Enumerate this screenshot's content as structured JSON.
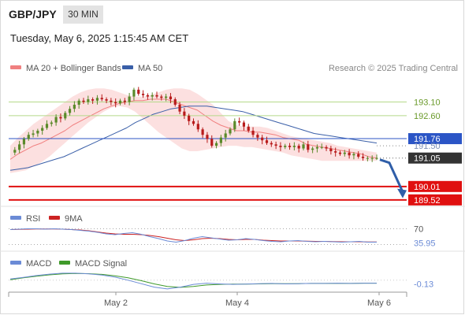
{
  "header": {
    "symbol": "GBP/JPY",
    "interval": "30 MIN",
    "datetime": "Tuesday, May 6, 2025 1:15:45 AM CET"
  },
  "credit": "Research © 2025 Trading Central",
  "colors": {
    "ma20": "#f08080",
    "bollinger_fill": "#fbd5d5",
    "ma50": "#3a5fa8",
    "resistance_line": "#b5d98a",
    "resistance_text": "#6a9a2a",
    "pivot_line": "#2b55c6",
    "pivot_box": "#2b55c6",
    "price_box": "#333333",
    "support": "#e01010",
    "bull_candle": "#5a8a2a",
    "bear_candle": "#b81c1c",
    "forecast_arrow": "#2f5ea8",
    "rsi_line": "#6b8bd6",
    "rsi_9ma": "#cc2222",
    "macd_line": "#6b8bd6",
    "macd_signal": "#3f9a2a"
  },
  "chart_data": [
    {
      "type": "candlestick",
      "legend": [
        "MA 20 + Bollinger Bands",
        "MA 50"
      ],
      "x_ticks": [
        "May 2",
        "May 4",
        "May 6"
      ],
      "levels": [
        {
          "value": 193.1,
          "label": "193.10",
          "kind": "resistance"
        },
        {
          "value": 192.6,
          "label": "192.60",
          "kind": "resistance"
        },
        {
          "value": 191.76,
          "label": "191.76",
          "kind": "pivot"
        },
        {
          "value": 191.5,
          "label": "191.50",
          "kind": "dotted"
        },
        {
          "value": 191.05,
          "label": "191.05",
          "kind": "last"
        },
        {
          "value": 190.01,
          "label": "190.01",
          "kind": "support"
        },
        {
          "value": 189.52,
          "label": "189.52",
          "kind": "support"
        }
      ],
      "ylim": [
        189.4,
        193.95
      ],
      "closes": [
        191.25,
        191.35,
        191.55,
        191.75,
        191.9,
        191.95,
        192.05,
        192.15,
        192.3,
        192.35,
        192.55,
        192.5,
        192.7,
        192.85,
        193.0,
        193.15,
        193.1,
        193.2,
        193.15,
        193.25,
        193.2,
        193.15,
        193.1,
        193.05,
        193.15,
        193.1,
        193.3,
        193.55,
        193.4,
        193.35,
        193.3,
        193.35,
        193.3,
        193.25,
        193.3,
        193.2,
        193.0,
        192.75,
        192.6,
        192.4,
        192.3,
        192.1,
        191.9,
        191.75,
        191.5,
        191.6,
        191.8,
        191.95,
        192.1,
        192.4,
        192.35,
        192.2,
        192.05,
        191.9,
        191.8,
        191.7,
        191.6,
        191.55,
        191.5,
        191.45,
        191.5,
        191.45,
        191.5,
        191.4,
        191.55,
        191.35,
        191.4,
        191.45,
        191.45,
        191.4,
        191.3,
        191.25,
        191.2,
        191.25,
        191.15,
        191.2,
        191.1,
        191.05,
        191.05,
        191.05,
        191.05
      ],
      "ma20": [
        191.0,
        191.2,
        191.35,
        191.5,
        191.6,
        191.75,
        191.9,
        192.05,
        192.25,
        192.4,
        192.55,
        192.7,
        192.85,
        192.95,
        193.05,
        193.1,
        193.15,
        193.15,
        193.2,
        193.2,
        193.2,
        193.1,
        193.0,
        192.9,
        192.8,
        192.6,
        192.4,
        192.25,
        192.15,
        192.05,
        192.05,
        192.0,
        192.0,
        191.95,
        191.9,
        191.8,
        191.75,
        191.7,
        191.55,
        191.5,
        191.45,
        191.4,
        191.35,
        191.3,
        191.25,
        191.2,
        191.1,
        191.05
      ],
      "bb_upper": [
        191.5,
        191.8,
        192.05,
        192.3,
        192.5,
        192.7,
        192.9,
        193.1,
        193.3,
        193.45,
        193.55,
        193.6,
        193.6,
        193.55,
        193.45,
        193.35,
        193.3,
        193.3,
        193.35,
        193.45,
        193.55,
        193.6,
        193.6,
        193.55,
        193.4,
        193.2,
        193.0,
        192.7,
        192.4,
        192.25,
        192.2,
        192.2,
        192.2,
        192.15,
        192.05,
        191.95,
        191.85,
        191.8,
        191.75,
        191.7,
        191.65,
        191.6,
        191.5,
        191.45,
        191.4,
        191.35,
        191.3,
        191.25
      ],
      "bb_lower": [
        190.5,
        190.55,
        190.6,
        190.75,
        190.9,
        191.1,
        191.35,
        191.6,
        191.85,
        192.1,
        192.35,
        192.55,
        192.75,
        192.9,
        192.95,
        192.9,
        192.75,
        192.5,
        192.25,
        192.0,
        191.8,
        191.6,
        191.4,
        191.3,
        191.3,
        191.35,
        191.4,
        191.45,
        191.5,
        191.5,
        191.45,
        191.45,
        191.4,
        191.35,
        191.3,
        191.25,
        191.15,
        191.1,
        191.05,
        191.0,
        190.95,
        190.95,
        190.95,
        190.95,
        190.95,
        190.95,
        190.95,
        190.95
      ],
      "ma50": [
        190.6,
        190.65,
        190.7,
        190.8,
        190.9,
        191.0,
        191.1,
        191.25,
        191.4,
        191.55,
        191.7,
        191.85,
        192.0,
        192.15,
        192.35,
        192.5,
        192.65,
        192.75,
        192.85,
        192.9,
        192.95,
        192.95,
        192.95,
        192.9,
        192.85,
        192.8,
        192.75,
        192.65,
        192.55,
        192.45,
        192.35,
        192.25,
        192.15,
        192.05,
        191.95,
        191.9,
        191.85,
        191.8,
        191.75,
        191.7,
        191.65,
        191.6
      ],
      "forecast": {
        "from": 191.05,
        "to": 189.7
      }
    },
    {
      "type": "line",
      "legend": [
        "RSI",
        "9MA"
      ],
      "levels": [
        "70",
        "35.95"
      ],
      "series": [
        {
          "name": "RSI",
          "values": [
            68,
            69,
            70,
            70,
            69,
            70,
            69,
            68,
            66,
            64,
            61,
            57,
            55,
            58,
            60,
            56,
            50,
            45,
            39,
            36,
            40,
            46,
            50,
            47,
            44,
            41,
            42,
            45,
            43,
            40,
            38,
            37,
            39,
            40,
            38,
            37,
            38,
            37,
            36,
            37,
            38,
            36,
            35.95
          ]
        },
        {
          "name": "9MA",
          "values": [
            68,
            68.5,
            69,
            69.5,
            69.5,
            69.5,
            69,
            68,
            67,
            65,
            62,
            59,
            57,
            56,
            56,
            55,
            53,
            50,
            46,
            42,
            40,
            42,
            45,
            46,
            45,
            43,
            42,
            43,
            43,
            41,
            40,
            39,
            39,
            39,
            38.5,
            38,
            38,
            37.5,
            37,
            37,
            37,
            36.5,
            36.5
          ]
        }
      ]
    },
    {
      "type": "line",
      "legend": [
        "MACD",
        "MACD Signal"
      ],
      "levels": [
        "-0.13"
      ],
      "series": [
        {
          "name": "MACD",
          "values": [
            0.05,
            0.12,
            0.2,
            0.26,
            0.3,
            0.3,
            0.27,
            0.22,
            0.13,
            0.0,
            -0.15,
            -0.3,
            -0.38,
            -0.3,
            -0.18,
            -0.13,
            -0.16,
            -0.18,
            -0.17,
            -0.15,
            -0.14,
            -0.16,
            -0.15,
            -0.14,
            -0.14,
            -0.13,
            -0.14,
            -0.13,
            -0.13
          ]
        },
        {
          "name": "MACD Signal",
          "values": [
            0.02,
            0.1,
            0.17,
            0.23,
            0.27,
            0.29,
            0.28,
            0.25,
            0.19,
            0.1,
            -0.02,
            -0.16,
            -0.27,
            -0.31,
            -0.27,
            -0.21,
            -0.18,
            -0.17,
            -0.17,
            -0.16,
            -0.15,
            -0.15,
            -0.15,
            -0.14,
            -0.14,
            -0.14,
            -0.14,
            -0.13,
            -0.13
          ]
        }
      ]
    }
  ]
}
